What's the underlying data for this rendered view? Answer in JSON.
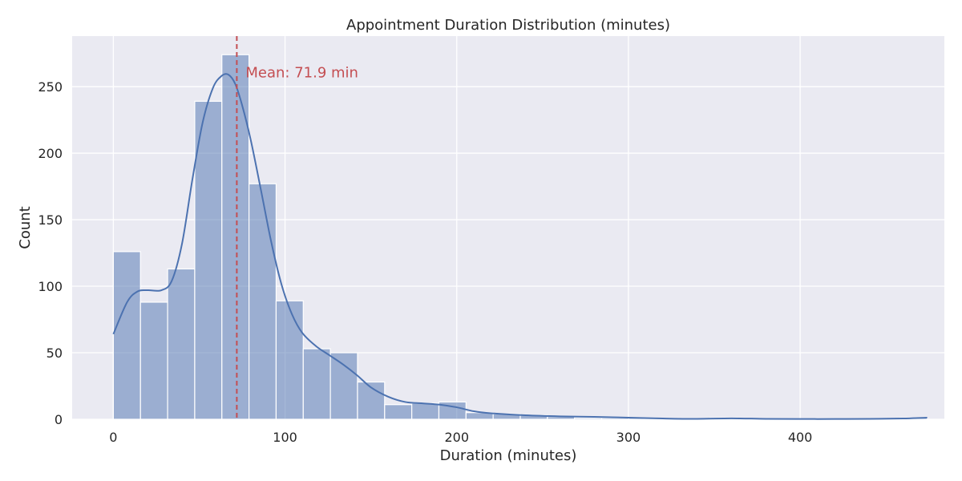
{
  "chart_data": {
    "type": "histogram",
    "title": "Appointment Duration Distribution (minutes)",
    "xlabel": "Duration (minutes)",
    "ylabel": "Count",
    "xlim": [
      -24,
      484
    ],
    "ylim": [
      0,
      288
    ],
    "x_ticks": [
      0,
      100,
      200,
      300,
      400
    ],
    "y_ticks": [
      0,
      50,
      100,
      150,
      200,
      250
    ],
    "grid": true,
    "background": "#EAEAF2",
    "bar_color": "#4C72B0",
    "bar_opacity": 0.5,
    "kde_color": "#4C72B0",
    "mean_line_color": "#C44E52",
    "bin_width": 15.8,
    "bins": [
      {
        "start": 0.0,
        "count": 126
      },
      {
        "start": 15.8,
        "count": 88
      },
      {
        "start": 31.6,
        "count": 113
      },
      {
        "start": 47.4,
        "count": 239
      },
      {
        "start": 63.2,
        "count": 274
      },
      {
        "start": 79.0,
        "count": 177
      },
      {
        "start": 94.8,
        "count": 89
      },
      {
        "start": 110.6,
        "count": 53
      },
      {
        "start": 126.4,
        "count": 50
      },
      {
        "start": 142.2,
        "count": 28
      },
      {
        "start": 158.0,
        "count": 11
      },
      {
        "start": 173.8,
        "count": 12
      },
      {
        "start": 189.6,
        "count": 13
      },
      {
        "start": 205.4,
        "count": 5
      },
      {
        "start": 221.2,
        "count": 4
      },
      {
        "start": 237.0,
        "count": 3
      },
      {
        "start": 252.8,
        "count": 2
      },
      {
        "start": 268.6,
        "count": 1
      },
      {
        "start": 284.4,
        "count": 1
      },
      {
        "start": 300.2,
        "count": 1
      },
      {
        "start": 316.0,
        "count": 0
      },
      {
        "start": 331.8,
        "count": 0
      },
      {
        "start": 347.6,
        "count": 1
      },
      {
        "start": 363.4,
        "count": 0
      },
      {
        "start": 379.2,
        "count": 0
      },
      {
        "start": 395.0,
        "count": 0
      },
      {
        "start": 410.8,
        "count": 0
      },
      {
        "start": 426.6,
        "count": 0
      },
      {
        "start": 442.4,
        "count": 0
      },
      {
        "start": 458.2,
        "count": 1
      }
    ],
    "kde": {
      "x": [
        0,
        8,
        14,
        20,
        28,
        34,
        40,
        46,
        52,
        58,
        63,
        67,
        71,
        75,
        80,
        86,
        92,
        98,
        104,
        110,
        118,
        126,
        134,
        142,
        150,
        160,
        170,
        180,
        190,
        200,
        210,
        220,
        240,
        260,
        280,
        300,
        320,
        340,
        360,
        380,
        400,
        420,
        440,
        460,
        474
      ],
      "y": [
        64,
        88,
        96,
        97,
        97,
        104,
        132,
        180,
        223,
        249,
        258,
        259,
        252,
        236,
        210,
        172,
        133,
        101,
        79,
        65,
        55,
        48,
        41,
        33,
        24,
        17,
        13,
        12,
        11,
        9,
        6,
        4.5,
        3,
        2.2,
        1.8,
        1.2,
        0.6,
        0.3,
        0.7,
        0.3,
        0.2,
        0.2,
        0.3,
        0.6,
        1.2
      ]
    },
    "mean": {
      "value": 71.9,
      "label": "Mean: 71.9 min"
    }
  }
}
